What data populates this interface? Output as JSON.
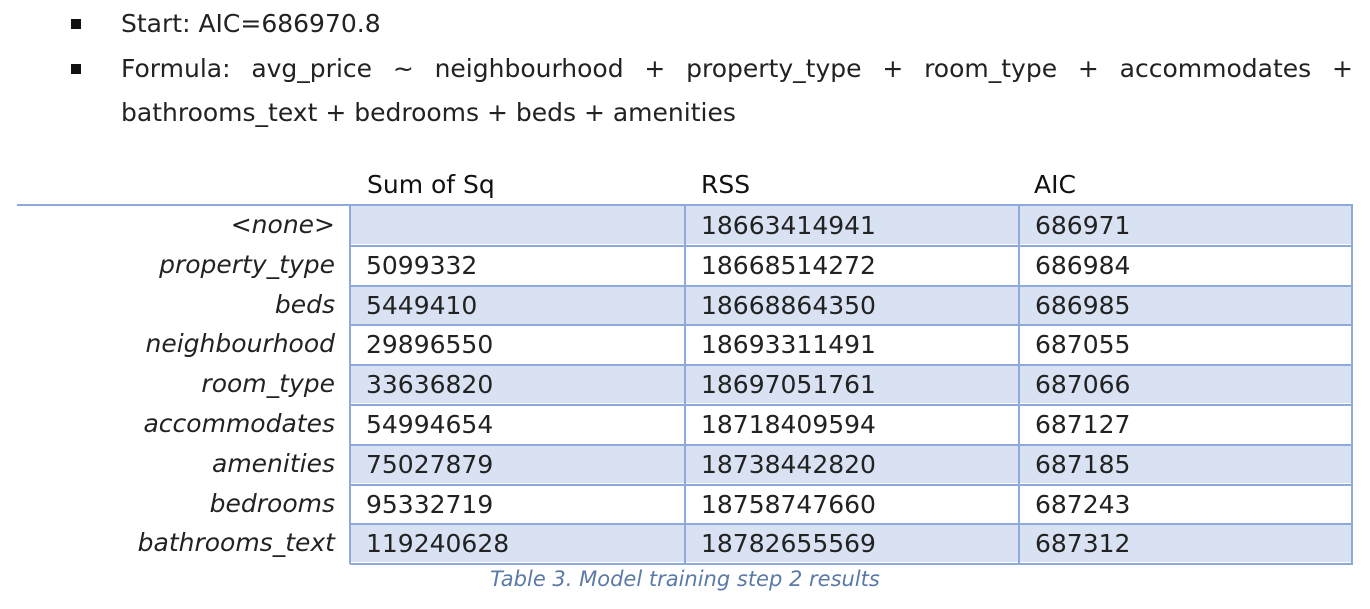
{
  "bullets": {
    "start_text": "Start:  AIC=686970.8",
    "formula_tokens": [
      "Formula:",
      "avg_price",
      "~",
      "neighbourhood",
      "+",
      "property_type",
      "+",
      "room_type",
      "+",
      "accommodates",
      "+"
    ],
    "formula_line2": "bathrooms_text + bedrooms + beds + amenities"
  },
  "table": {
    "headers": [
      "Sum of Sq",
      "RSS",
      "AIC"
    ],
    "rows": [
      {
        "label": "<none>",
        "sum_sq": "",
        "rss": "18663414941",
        "aic": "686971"
      },
      {
        "label": "property_type",
        "sum_sq": "5099332",
        "rss": "18668514272",
        "aic": "686984"
      },
      {
        "label": "beds",
        "sum_sq": "5449410",
        "rss": "18668864350",
        "aic": "686985"
      },
      {
        "label": "neighbourhood",
        "sum_sq": "29896550",
        "rss": "18693311491",
        "aic": "687055"
      },
      {
        "label": "room_type",
        "sum_sq": "33636820",
        "rss": "18697051761",
        "aic": "687066"
      },
      {
        "label": "accommodates",
        "sum_sq": "54994654",
        "rss": "18718409594",
        "aic": "687127"
      },
      {
        "label": "amenities",
        "sum_sq": "75027879",
        "rss": "18738442820",
        "aic": "687185"
      },
      {
        "label": "bedrooms",
        "sum_sq": "95332719",
        "rss": "18758747660",
        "aic": "687243"
      },
      {
        "label": "bathrooms_text",
        "sum_sq": "119240628",
        "rss": "18782655569",
        "aic": "687312"
      }
    ],
    "caption": "Table 3. Model training step 2 results"
  },
  "colors": {
    "grid": "#8eaadb",
    "band": "#d9e2f3",
    "caption": "#5b7aa7"
  }
}
